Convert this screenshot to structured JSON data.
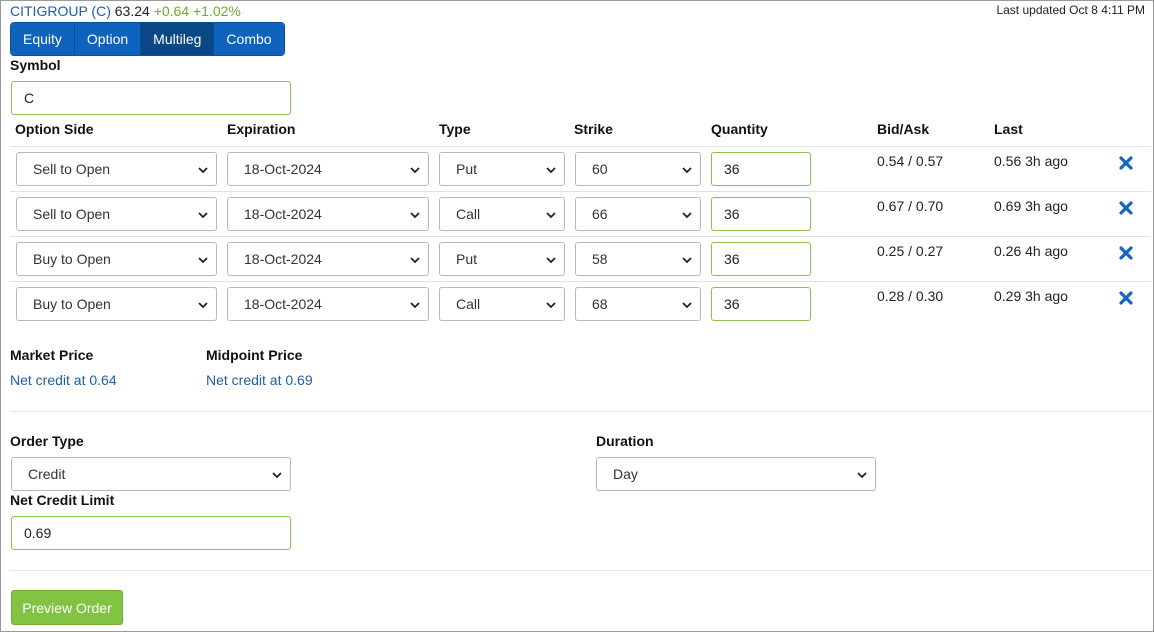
{
  "quote": {
    "company": "CITIGROUP (C)",
    "price": "63.24",
    "change": "+0.64 +1.02%"
  },
  "last_updated": "Last updated Oct 8 4:11 PM",
  "tabs": [
    {
      "label": "Equity"
    },
    {
      "label": "Option"
    },
    {
      "label": "Multileg",
      "active": true
    },
    {
      "label": "Combo"
    }
  ],
  "symbol": {
    "label": "Symbol",
    "value": "C"
  },
  "legs_header": {
    "option_side": "Option Side",
    "expiration": "Expiration",
    "type": "Type",
    "strike": "Strike",
    "quantity": "Quantity",
    "bid_ask": "Bid/Ask",
    "last": "Last"
  },
  "legs": [
    {
      "side": "Sell to Open",
      "expiration": "18-Oct-2024",
      "type": "Put",
      "strike": "60",
      "quantity": "36",
      "bid_ask": "0.54 / 0.57",
      "last": "0.56 3h ago"
    },
    {
      "side": "Sell to Open",
      "expiration": "18-Oct-2024",
      "type": "Call",
      "strike": "66",
      "quantity": "36",
      "bid_ask": "0.67 / 0.70",
      "last": "0.69 3h ago"
    },
    {
      "side": "Buy to Open",
      "expiration": "18-Oct-2024",
      "type": "Put",
      "strike": "58",
      "quantity": "36",
      "bid_ask": "0.25 / 0.27",
      "last": "0.26 4h ago"
    },
    {
      "side": "Buy to Open",
      "expiration": "18-Oct-2024",
      "type": "Call",
      "strike": "68",
      "quantity": "36",
      "bid_ask": "0.28 / 0.30",
      "last": "0.29 3h ago"
    }
  ],
  "market_price": {
    "label": "Market Price",
    "value": "Net credit at 0.64"
  },
  "midpoint_price": {
    "label": "Midpoint Price",
    "value": "Net credit at 0.69"
  },
  "order_type": {
    "label": "Order Type",
    "value": "Credit"
  },
  "duration": {
    "label": "Duration",
    "value": "Day"
  },
  "net_credit_limit": {
    "label": "Net Credit Limit",
    "value": "0.69"
  },
  "preview_button": "Preview Order",
  "colors": {
    "tab_blue": "#0d63bd",
    "tab_active": "#0a4784",
    "link_blue": "#1f5fa8",
    "positive_green": "#6aab2e",
    "button_green": "#82c341",
    "input_border_green": "#8bc34a",
    "remove_icon_blue": "#1565c0"
  },
  "icons": {
    "remove": "close-icon",
    "dropdown": "chevron-down-icon"
  }
}
